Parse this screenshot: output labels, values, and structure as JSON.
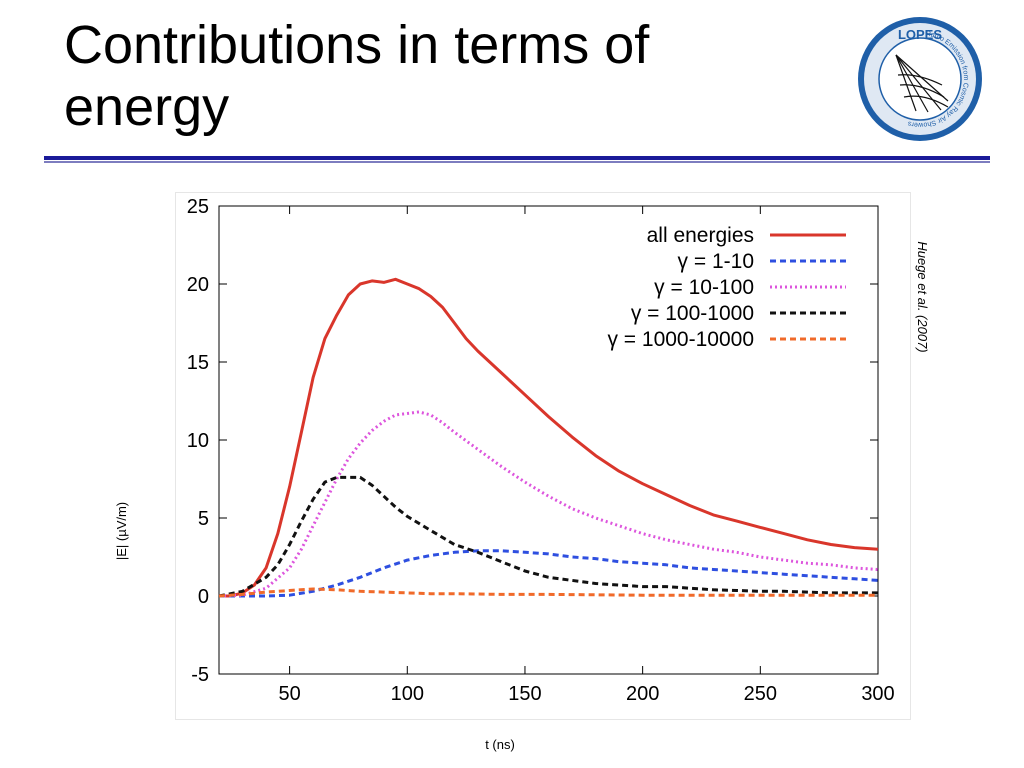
{
  "slide": {
    "title": "Contributions in terms of energy"
  },
  "logo": {
    "top_text": "LOPES",
    "ring_text": "Radio Emission from Cosmic Ray Air Showers",
    "icon": "radio-antenna-logo"
  },
  "colors": {
    "title_rule": "#1a1a99",
    "all_energies": "#d9362b",
    "gamma_1_10": "#2e4fe0",
    "gamma_10_100": "#dd55dd",
    "gamma_100_1000": "#111111",
    "gamma_1000_10000": "#f06a2a"
  },
  "chart_data": {
    "type": "line",
    "xlabel": "t (ns)",
    "ylabel": "|E| (µV/m)",
    "citation": "Huege et al. (2007)",
    "xlim": [
      20,
      300
    ],
    "ylim": [
      -5,
      25
    ],
    "xticks": [
      50,
      100,
      150,
      200,
      250,
      300
    ],
    "yticks": [
      -5,
      0,
      5,
      10,
      15,
      20,
      25
    ],
    "grid": false,
    "legend_position": "top-right",
    "series": [
      {
        "name": "all energies",
        "style": "solid",
        "color": "#d9362b",
        "points": [
          [
            20,
            0
          ],
          [
            25,
            0
          ],
          [
            30,
            0.2
          ],
          [
            35,
            0.7
          ],
          [
            40,
            1.8
          ],
          [
            45,
            4
          ],
          [
            50,
            7
          ],
          [
            55,
            10.5
          ],
          [
            60,
            14
          ],
          [
            65,
            16.5
          ],
          [
            70,
            18
          ],
          [
            75,
            19.3
          ],
          [
            80,
            20
          ],
          [
            85,
            20.2
          ],
          [
            90,
            20.1
          ],
          [
            95,
            20.3
          ],
          [
            100,
            20
          ],
          [
            105,
            19.7
          ],
          [
            110,
            19.2
          ],
          [
            115,
            18.5
          ],
          [
            120,
            17.5
          ],
          [
            125,
            16.5
          ],
          [
            130,
            15.7
          ],
          [
            140,
            14.3
          ],
          [
            150,
            12.9
          ],
          [
            160,
            11.5
          ],
          [
            170,
            10.2
          ],
          [
            180,
            9
          ],
          [
            190,
            8
          ],
          [
            200,
            7.2
          ],
          [
            210,
            6.5
          ],
          [
            220,
            5.8
          ],
          [
            230,
            5.2
          ],
          [
            240,
            4.8
          ],
          [
            250,
            4.4
          ],
          [
            260,
            4
          ],
          [
            270,
            3.6
          ],
          [
            280,
            3.3
          ],
          [
            290,
            3.1
          ],
          [
            300,
            3
          ]
        ]
      },
      {
        "name": "γ = 1-10",
        "style": "dashed",
        "color": "#2e4fe0",
        "points": [
          [
            20,
            0
          ],
          [
            40,
            0
          ],
          [
            50,
            0.05
          ],
          [
            60,
            0.3
          ],
          [
            70,
            0.7
          ],
          [
            80,
            1.2
          ],
          [
            90,
            1.8
          ],
          [
            100,
            2.3
          ],
          [
            110,
            2.6
          ],
          [
            120,
            2.8
          ],
          [
            130,
            2.9
          ],
          [
            140,
            2.9
          ],
          [
            150,
            2.8
          ],
          [
            160,
            2.7
          ],
          [
            170,
            2.5
          ],
          [
            180,
            2.4
          ],
          [
            190,
            2.2
          ],
          [
            200,
            2.1
          ],
          [
            210,
            2
          ],
          [
            220,
            1.8
          ],
          [
            230,
            1.7
          ],
          [
            240,
            1.6
          ],
          [
            250,
            1.5
          ],
          [
            260,
            1.4
          ],
          [
            270,
            1.3
          ],
          [
            280,
            1.2
          ],
          [
            290,
            1.1
          ],
          [
            300,
            1
          ]
        ]
      },
      {
        "name": "γ = 10-100",
        "style": "dotted",
        "color": "#dd55dd",
        "points": [
          [
            20,
            0
          ],
          [
            30,
            0.05
          ],
          [
            40,
            0.5
          ],
          [
            50,
            1.8
          ],
          [
            55,
            3
          ],
          [
            60,
            4.5
          ],
          [
            65,
            6
          ],
          [
            70,
            7.5
          ],
          [
            75,
            8.8
          ],
          [
            80,
            9.8
          ],
          [
            85,
            10.6
          ],
          [
            90,
            11.2
          ],
          [
            95,
            11.6
          ],
          [
            100,
            11.7
          ],
          [
            105,
            11.8
          ],
          [
            110,
            11.6
          ],
          [
            115,
            11.1
          ],
          [
            120,
            10.5
          ],
          [
            130,
            9.4
          ],
          [
            140,
            8.3
          ],
          [
            150,
            7.3
          ],
          [
            160,
            6.4
          ],
          [
            170,
            5.6
          ],
          [
            180,
            5
          ],
          [
            190,
            4.5
          ],
          [
            200,
            4
          ],
          [
            210,
            3.6
          ],
          [
            220,
            3.3
          ],
          [
            230,
            3
          ],
          [
            240,
            2.8
          ],
          [
            250,
            2.5
          ],
          [
            260,
            2.3
          ],
          [
            270,
            2.1
          ],
          [
            280,
            2
          ],
          [
            290,
            1.8
          ],
          [
            300,
            1.7
          ]
        ]
      },
      {
        "name": "γ = 100-1000",
        "style": "dashed",
        "color": "#111111",
        "points": [
          [
            20,
            0
          ],
          [
            30,
            0.3
          ],
          [
            40,
            1.2
          ],
          [
            45,
            2
          ],
          [
            50,
            3.3
          ],
          [
            55,
            4.8
          ],
          [
            60,
            6.2
          ],
          [
            65,
            7.3
          ],
          [
            70,
            7.6
          ],
          [
            75,
            7.6
          ],
          [
            80,
            7.6
          ],
          [
            85,
            7.1
          ],
          [
            90,
            6.4
          ],
          [
            95,
            5.7
          ],
          [
            100,
            5.1
          ],
          [
            110,
            4.2
          ],
          [
            120,
            3.3
          ],
          [
            130,
            2.8
          ],
          [
            140,
            2.2
          ],
          [
            150,
            1.6
          ],
          [
            160,
            1.2
          ],
          [
            170,
            1
          ],
          [
            180,
            0.8
          ],
          [
            190,
            0.7
          ],
          [
            200,
            0.6
          ],
          [
            210,
            0.6
          ],
          [
            220,
            0.5
          ],
          [
            230,
            0.4
          ],
          [
            240,
            0.35
          ],
          [
            250,
            0.3
          ],
          [
            260,
            0.3
          ],
          [
            270,
            0.25
          ],
          [
            280,
            0.2
          ],
          [
            290,
            0.2
          ],
          [
            300,
            0.2
          ]
        ]
      },
      {
        "name": "γ = 1000-10000",
        "style": "dashed",
        "color": "#f06a2a",
        "points": [
          [
            20,
            0
          ],
          [
            30,
            0.1
          ],
          [
            40,
            0.25
          ],
          [
            50,
            0.35
          ],
          [
            60,
            0.45
          ],
          [
            70,
            0.4
          ],
          [
            80,
            0.3
          ],
          [
            90,
            0.25
          ],
          [
            100,
            0.2
          ],
          [
            110,
            0.15
          ],
          [
            120,
            0.15
          ],
          [
            140,
            0.1
          ],
          [
            160,
            0.1
          ],
          [
            200,
            0.05
          ],
          [
            240,
            0.05
          ],
          [
            300,
            0.05
          ]
        ]
      }
    ]
  }
}
